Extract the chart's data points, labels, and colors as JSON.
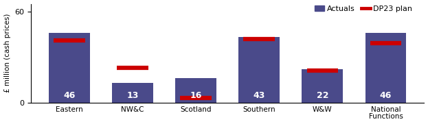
{
  "categories": [
    "Eastern",
    "NW&C",
    "Scotland",
    "Southern",
    "W&W",
    "National\nFunctions"
  ],
  "actuals": [
    46,
    13,
    16,
    43,
    22,
    46
  ],
  "dp23_plan": [
    41,
    23,
    3,
    42,
    21,
    39
  ],
  "bar_color": "#4a4a8a",
  "dp23_color": "#cc0000",
  "bar_label_color": "#ffffff",
  "bar_label_fontsize": 9,
  "ylabel": "£ million (cash prices)",
  "ylim": [
    0,
    65
  ],
  "yticks": [
    0,
    60
  ],
  "legend_actuals_label": "Actuals",
  "legend_dp23_label": "DP23 plan",
  "figsize": [
    6.23,
    1.81
  ],
  "dpi": 100
}
